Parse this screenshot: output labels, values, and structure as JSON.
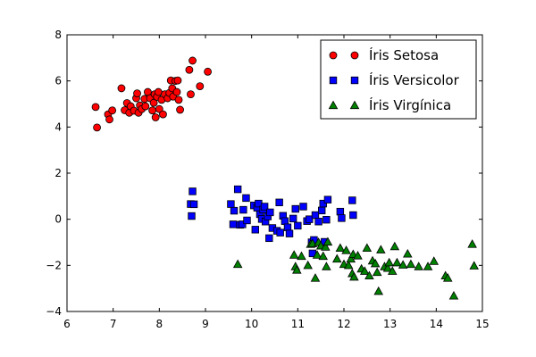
{
  "chart_data": {
    "type": "scatter",
    "title": "",
    "xlabel": "",
    "ylabel": "",
    "xlim": [
      6,
      15
    ],
    "ylim": [
      -4,
      8
    ],
    "xticks": [
      6,
      7,
      8,
      9,
      10,
      11,
      12,
      13,
      14,
      15
    ],
    "yticks": [
      -4,
      -2,
      0,
      2,
      4,
      6,
      8
    ],
    "grid": false,
    "legend_position": "top-right",
    "series": [
      {
        "name": "Íris Setosa",
        "marker": "circle",
        "color": "#ff0000",
        "points": [
          [
            6.62,
            4.87
          ],
          [
            6.65,
            3.98
          ],
          [
            6.89,
            4.55
          ],
          [
            6.92,
            4.33
          ],
          [
            6.98,
            4.72
          ],
          [
            7.18,
            5.68
          ],
          [
            7.25,
            4.73
          ],
          [
            7.3,
            5.04
          ],
          [
            7.35,
            4.62
          ],
          [
            7.38,
            4.9
          ],
          [
            7.45,
            4.71
          ],
          [
            7.5,
            5.25
          ],
          [
            7.52,
            5.46
          ],
          [
            7.55,
            4.62
          ],
          [
            7.58,
            4.94
          ],
          [
            7.62,
            4.78
          ],
          [
            7.68,
            5.22
          ],
          [
            7.7,
            4.9
          ],
          [
            7.75,
            5.52
          ],
          [
            7.8,
            5.25
          ],
          [
            7.85,
            4.72
          ],
          [
            7.88,
            5.05
          ],
          [
            7.9,
            5.42
          ],
          [
            7.92,
            4.42
          ],
          [
            7.95,
            5.31
          ],
          [
            7.98,
            5.52
          ],
          [
            8.0,
            4.78
          ],
          [
            8.05,
            5.18
          ],
          [
            8.08,
            4.55
          ],
          [
            8.12,
            5.42
          ],
          [
            8.18,
            5.25
          ],
          [
            8.22,
            5.48
          ],
          [
            8.25,
            6.02
          ],
          [
            8.28,
            5.68
          ],
          [
            8.3,
            5.32
          ],
          [
            8.35,
            6.0
          ],
          [
            8.38,
            5.52
          ],
          [
            8.4,
            6.02
          ],
          [
            8.42,
            5.18
          ],
          [
            8.45,
            4.75
          ],
          [
            8.65,
            6.48
          ],
          [
            8.68,
            5.42
          ],
          [
            8.72,
            6.88
          ],
          [
            8.88,
            5.77
          ],
          [
            9.05,
            6.4
          ]
        ]
      },
      {
        "name": "Íris Versicolor",
        "marker": "square",
        "color": "#0000ff",
        "points": [
          [
            8.68,
            0.66
          ],
          [
            8.7,
            0.14
          ],
          [
            8.72,
            1.21
          ],
          [
            8.75,
            0.65
          ],
          [
            9.55,
            0.66
          ],
          [
            9.6,
            -0.22
          ],
          [
            9.62,
            0.37
          ],
          [
            9.7,
            1.3
          ],
          [
            9.75,
            -0.24
          ],
          [
            9.8,
            -0.22
          ],
          [
            9.82,
            0.41
          ],
          [
            9.88,
            0.92
          ],
          [
            9.9,
            -0.05
          ],
          [
            10.05,
            0.6
          ],
          [
            10.08,
            -0.45
          ],
          [
            10.12,
            0.5
          ],
          [
            10.15,
            0.68
          ],
          [
            10.18,
            0.22
          ],
          [
            10.22,
            0.01
          ],
          [
            10.25,
            0.42
          ],
          [
            10.28,
            0.55
          ],
          [
            10.3,
            -0.1
          ],
          [
            10.35,
            0.12
          ],
          [
            10.38,
            -0.82
          ],
          [
            10.4,
            0.3
          ],
          [
            10.45,
            -0.38
          ],
          [
            10.55,
            -0.5
          ],
          [
            10.6,
            0.73
          ],
          [
            10.62,
            -0.58
          ],
          [
            10.68,
            0.15
          ],
          [
            10.72,
            -0.08
          ],
          [
            10.78,
            -0.35
          ],
          [
            10.82,
            -0.62
          ],
          [
            10.9,
            0.03
          ],
          [
            10.95,
            0.45
          ],
          [
            11.0,
            -0.28
          ],
          [
            11.12,
            0.55
          ],
          [
            11.2,
            -0.08
          ],
          [
            11.25,
            0.0
          ],
          [
            11.3,
            -1.0
          ],
          [
            11.32,
            -1.48
          ],
          [
            11.35,
            -0.9
          ],
          [
            11.38,
            0.18
          ],
          [
            11.45,
            -0.1
          ],
          [
            11.52,
            0.38
          ],
          [
            11.55,
            0.68
          ],
          [
            11.58,
            -0.98
          ],
          [
            11.62,
            -0.02
          ],
          [
            11.65,
            0.85
          ],
          [
            11.92,
            0.33
          ],
          [
            11.95,
            0.05
          ],
          [
            12.18,
            0.82
          ],
          [
            12.2,
            0.18
          ]
        ]
      },
      {
        "name": "Íris Virgínica",
        "marker": "triangle",
        "color": "#008000",
        "points": [
          [
            9.7,
            -1.95
          ],
          [
            10.92,
            -1.55
          ],
          [
            10.95,
            -2.05
          ],
          [
            10.98,
            -2.2
          ],
          [
            11.08,
            -1.6
          ],
          [
            11.22,
            -2.0
          ],
          [
            11.28,
            -1.08
          ],
          [
            11.32,
            -1.05
          ],
          [
            11.38,
            -2.55
          ],
          [
            11.42,
            -1.55
          ],
          [
            11.45,
            -1.0
          ],
          [
            11.5,
            -1.15
          ],
          [
            11.55,
            -1.6
          ],
          [
            11.6,
            -1.2
          ],
          [
            11.62,
            -2.05
          ],
          [
            11.65,
            -0.98
          ],
          [
            11.85,
            -1.72
          ],
          [
            11.92,
            -1.25
          ],
          [
            12.0,
            -1.95
          ],
          [
            12.05,
            -1.35
          ],
          [
            12.1,
            -2.0
          ],
          [
            12.15,
            -1.72
          ],
          [
            12.18,
            -2.35
          ],
          [
            12.2,
            -1.52
          ],
          [
            12.22,
            -2.5
          ],
          [
            12.3,
            -1.58
          ],
          [
            12.38,
            -2.15
          ],
          [
            12.45,
            -2.25
          ],
          [
            12.5,
            -1.25
          ],
          [
            12.55,
            -2.45
          ],
          [
            12.62,
            -1.8
          ],
          [
            12.68,
            -1.92
          ],
          [
            12.72,
            -2.3
          ],
          [
            12.75,
            -3.12
          ],
          [
            12.8,
            -1.32
          ],
          [
            12.88,
            -2.05
          ],
          [
            12.95,
            -2.12
          ],
          [
            12.98,
            -1.88
          ],
          [
            13.05,
            -2.25
          ],
          [
            13.1,
            -1.18
          ],
          [
            13.15,
            -1.88
          ],
          [
            13.28,
            -1.98
          ],
          [
            13.38,
            -1.5
          ],
          [
            13.45,
            -1.95
          ],
          [
            13.62,
            -2.05
          ],
          [
            13.82,
            -2.05
          ],
          [
            13.95,
            -1.82
          ],
          [
            14.2,
            -2.45
          ],
          [
            14.25,
            -2.55
          ],
          [
            14.38,
            -3.32
          ],
          [
            14.78,
            -1.08
          ],
          [
            14.82,
            -2.02
          ]
        ]
      }
    ]
  }
}
